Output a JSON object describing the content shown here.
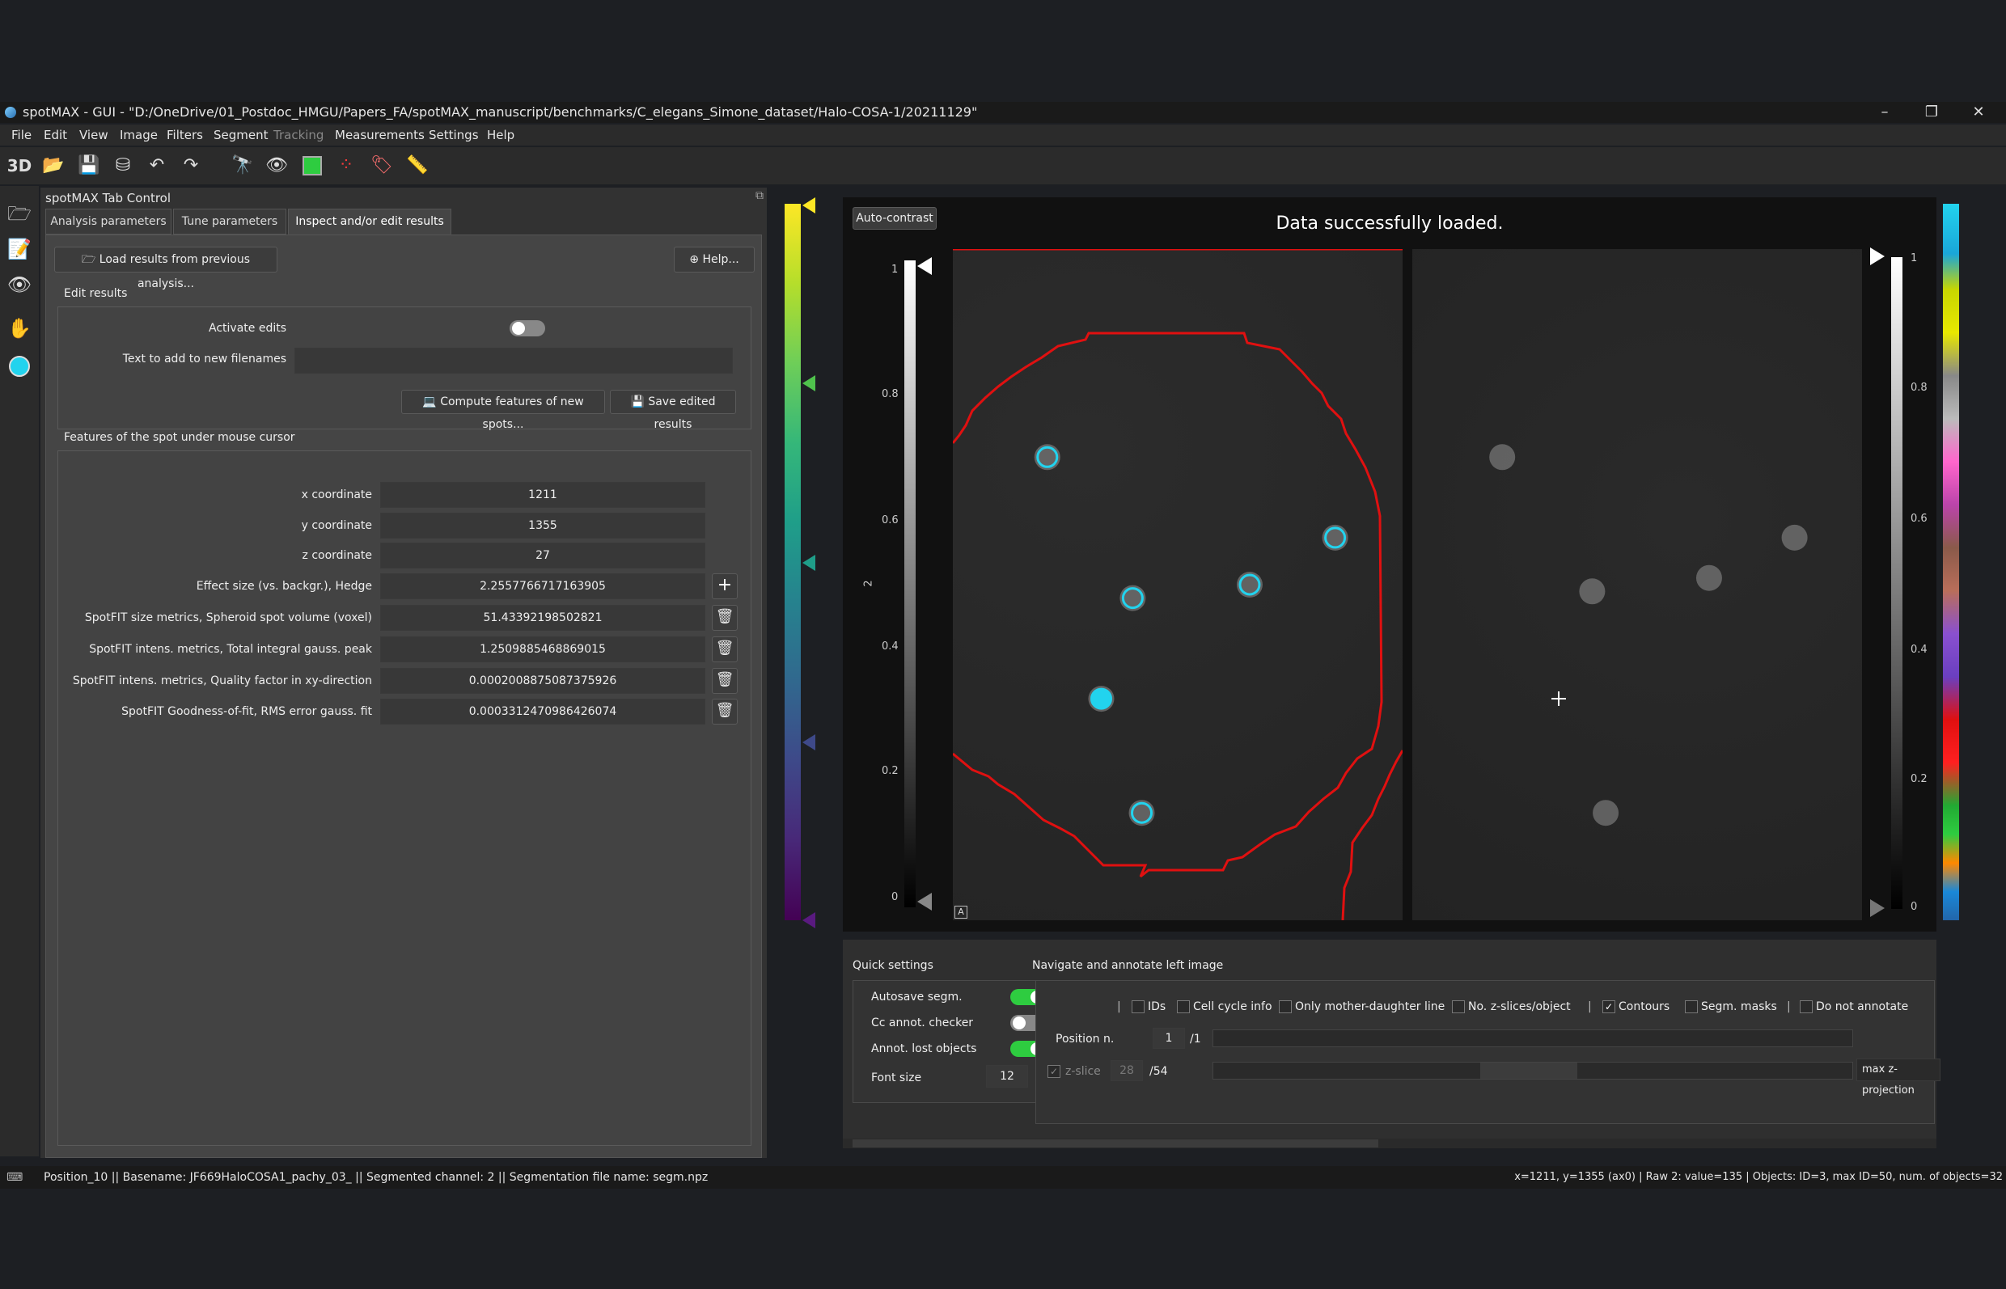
{
  "window": {
    "title": "spotMAX - GUI - \"D:/OneDrive/01_Postdoc_HMGU/Papers_FA/spotMAX_manuscript/benchmarks/C_elegans_Simone_dataset/Halo-COSA-1/20211129\"",
    "minimize": "–",
    "maximize": "❐",
    "close": "✕"
  },
  "menu": [
    "File",
    "Edit",
    "View",
    "Image",
    "Filters",
    "Segment",
    "Tracking",
    "Measurements",
    "Settings",
    "Help"
  ],
  "toolbar": {
    "mode_3d": "3D"
  },
  "dock": {
    "title": "spotMAX Tab Control",
    "tabs": [
      "Analysis parameters",
      "Tune parameters",
      "Inspect and/or edit results"
    ],
    "load_button": "Load results from previous analysis...",
    "help_button": "Help...",
    "edit_results": {
      "title": "Edit results",
      "activate_label": "Activate edits",
      "activate_on": false,
      "text_label": "Text to add to new filenames",
      "text_value": "",
      "compute_button": "Compute features of new spots...",
      "save_button": "Save edited results"
    },
    "features": {
      "title": "Features of the spot under mouse cursor",
      "rows": [
        {
          "label": "x coordinate",
          "value": "1211"
        },
        {
          "label": "y coordinate",
          "value": "1355"
        },
        {
          "label": "z coordinate",
          "value": "27"
        },
        {
          "label": "Effect size (vs. backgr.), Hedge",
          "value": "2.2557766717163905"
        },
        {
          "label": "SpotFIT size metrics, Spheroid spot volume (voxel)",
          "value": "51.43392198502821"
        },
        {
          "label": "SpotFIT intens. metrics, Total integral gauss. peak",
          "value": "1.2509885468869015"
        },
        {
          "label": "SpotFIT intens. metrics, Quality factor in xy-direction",
          "value": "0.0002008875087375926"
        },
        {
          "label": "SpotFIT Goodness-of-fit, RMS error gauss. fit",
          "value": "0.0003312470986426074"
        }
      ]
    }
  },
  "viewer": {
    "auto_contrast": "Auto-contrast",
    "status_message": "Data successfully loaded.",
    "left_ticks": [
      "1",
      "0.8",
      "0.6",
      "0.4",
      "0.2",
      "0"
    ],
    "right_ticks": [
      "1",
      "0.8",
      "0.6",
      "0.4",
      "0.2",
      "0"
    ],
    "left_axis_label": "2",
    "corner_label": "A",
    "spots_left": [
      [
        0.21,
        0.31
      ],
      [
        0.4,
        0.52
      ],
      [
        0.66,
        0.5
      ],
      [
        0.85,
        0.43
      ],
      [
        0.33,
        0.67
      ],
      [
        0.42,
        0.84
      ]
    ],
    "spots_right": [
      [
        0.2,
        0.31
      ],
      [
        0.4,
        0.51
      ],
      [
        0.66,
        0.49
      ],
      [
        0.85,
        0.43
      ],
      [
        0.43,
        0.84
      ]
    ],
    "colors": {
      "accent": "#22d3ee",
      "contour": "#e01010"
    }
  },
  "quick_settings": {
    "title": "Quick settings",
    "items": [
      {
        "label": "Autosave segm.",
        "on": true
      },
      {
        "label": "Cc annot. checker",
        "on": false
      },
      {
        "label": "Annot. lost objects",
        "on": true
      }
    ],
    "font_size_label": "Font size",
    "font_size_value": "12"
  },
  "navigate": {
    "title": "Navigate and annotate left image",
    "sep": "|",
    "checks": [
      {
        "label": "IDs",
        "checked": false
      },
      {
        "label": "Cell cycle info",
        "checked": false
      },
      {
        "label": "Only mother-daughter line",
        "checked": false
      },
      {
        "label": "No. z-slices/object",
        "checked": false
      },
      {
        "label": "Contours",
        "checked": true
      },
      {
        "label": "Segm. masks",
        "checked": false
      },
      {
        "label": "Do not annotate",
        "checked": false
      }
    ],
    "position_label": "Position n.",
    "position_value": "1",
    "position_total": "/1",
    "zslice_label": "z-slice",
    "zslice_value": "28",
    "zslice_total": "/54",
    "projection": "max z-projection"
  },
  "statusbar": {
    "left": "Position_10 || Basename: JF669HaloCOSA1_pachy_03_ || Segmented channel: 2 || Segmentation file name: segm.npz",
    "right": "x=1211, y=1355 (ax0) | Raw 2: value=135 | Objects: ID=3, max ID=50, num. of objects=32"
  }
}
